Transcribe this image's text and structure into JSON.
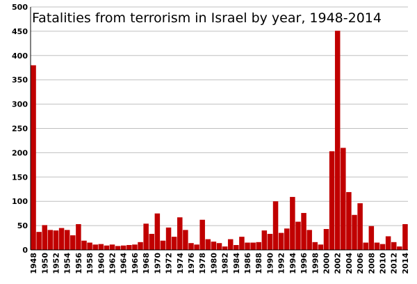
{
  "chart_data": {
    "type": "bar",
    "title": "Fatalities from terrorism in Israel by year, 1948-2014",
    "xlabel": "",
    "ylabel": "",
    "ylim": [
      0,
      500
    ],
    "yticks": [
      0,
      50,
      100,
      150,
      200,
      250,
      300,
      350,
      400,
      450,
      500
    ],
    "grid": true,
    "bar_color": "#c00000",
    "categories": [
      "1948",
      "1949",
      "1950",
      "1951",
      "1952",
      "1953",
      "1954",
      "1955",
      "1956",
      "1957",
      "1958",
      "1959",
      "1960",
      "1961",
      "1962",
      "1963",
      "1964",
      "1965",
      "1966",
      "1967",
      "1968",
      "1969",
      "1970",
      "1971",
      "1972",
      "1973",
      "1974",
      "1975",
      "1976",
      "1977",
      "1978",
      "1979",
      "1980",
      "1981",
      "1982",
      "1983",
      "1984",
      "1985",
      "1986",
      "1987",
      "1988",
      "1989",
      "1990",
      "1991",
      "1992",
      "1993",
      "1994",
      "1995",
      "1996",
      "1997",
      "1998",
      "1999",
      "2000",
      "2001",
      "2002",
      "2003",
      "2004",
      "2005",
      "2006",
      "2007",
      "2008",
      "2009",
      "2010",
      "2011",
      "2012",
      "2013",
      "2014"
    ],
    "tick_labels": [
      "1948",
      "1950",
      "1952",
      "1954",
      "1956",
      "1958",
      "1960",
      "1962",
      "1964",
      "1966",
      "1968",
      "1970",
      "1972",
      "1974",
      "1976",
      "1978",
      "1980",
      "1982",
      "1984",
      "1986",
      "1988",
      "1990",
      "1992",
      "1994",
      "1996",
      "1998",
      "2000",
      "2002",
      "2004",
      "2006",
      "2008",
      "2010",
      "2012",
      "2014"
    ],
    "values": [
      380,
      37,
      51,
      41,
      40,
      45,
      41,
      30,
      53,
      19,
      15,
      11,
      12,
      9,
      11,
      8,
      9,
      10,
      11,
      16,
      54,
      33,
      75,
      19,
      46,
      27,
      67,
      41,
      14,
      11,
      62,
      22,
      17,
      14,
      7,
      22,
      10,
      27,
      15,
      15,
      16,
      40,
      33,
      100,
      35,
      44,
      109,
      58,
      76,
      41,
      16,
      11,
      43,
      203,
      451,
      210,
      119,
      72,
      96,
      15,
      49,
      15,
      12,
      28,
      16,
      7,
      53
    ]
  }
}
